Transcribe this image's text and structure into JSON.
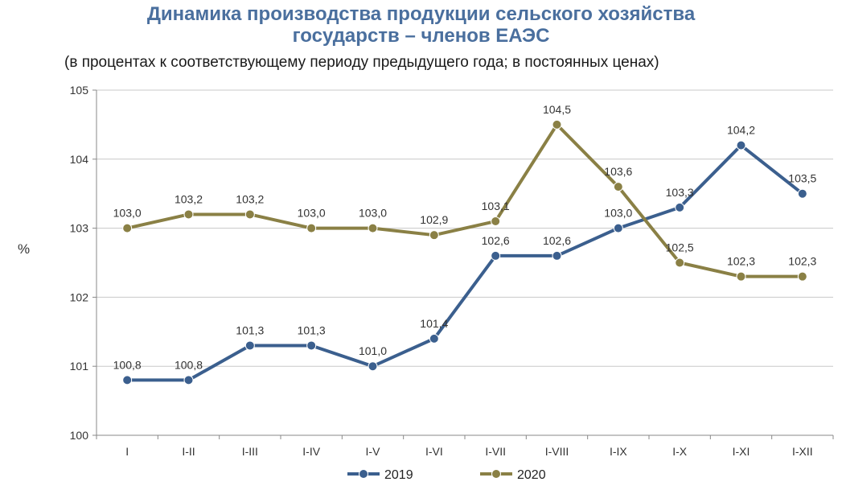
{
  "chart_data": {
    "type": "line",
    "title_line1": "Динамика производства продукции сельского хозяйства",
    "title_line2": "государств – членов ЕАЭС",
    "subtitle": "(в процентах к соответствующему периоду предыдущего года; в постоянных ценах)",
    "ylabel": "%",
    "xlabel": "",
    "categories": [
      "I",
      "I-II",
      "I-III",
      "I-IV",
      "I-V",
      "I-VI",
      "I-VII",
      "I-VIII",
      "I-IX",
      "I-X",
      "I-XI",
      "I-XII"
    ],
    "ylim": [
      100,
      105
    ],
    "yticks": [
      100,
      101,
      102,
      103,
      104,
      105
    ],
    "grid": "horizontal",
    "legend_position": "bottom",
    "series": [
      {
        "name": "2019",
        "color": "#3b5f8e",
        "values": [
          100.8,
          100.8,
          101.3,
          101.3,
          101.0,
          101.4,
          102.6,
          102.6,
          103.0,
          103.3,
          104.2,
          103.5
        ],
        "labels": [
          "100,8",
          "100,8",
          "101,3",
          "101,3",
          "101,0",
          "101,4",
          "102,6",
          "102,6",
          "103,0",
          "103,3",
          "104,2",
          "103,5"
        ]
      },
      {
        "name": "2020",
        "color": "#8a8045",
        "values": [
          103.0,
          103.2,
          103.2,
          103.0,
          103.0,
          102.9,
          103.1,
          104.5,
          103.6,
          102.5,
          102.3,
          102.3
        ],
        "labels": [
          "103,0",
          "103,2",
          "103,2",
          "103,0",
          "103,0",
          "102,9",
          "103,1",
          "104,5",
          "103,6",
          "102,5",
          "102,3",
          "102,3"
        ]
      }
    ]
  }
}
